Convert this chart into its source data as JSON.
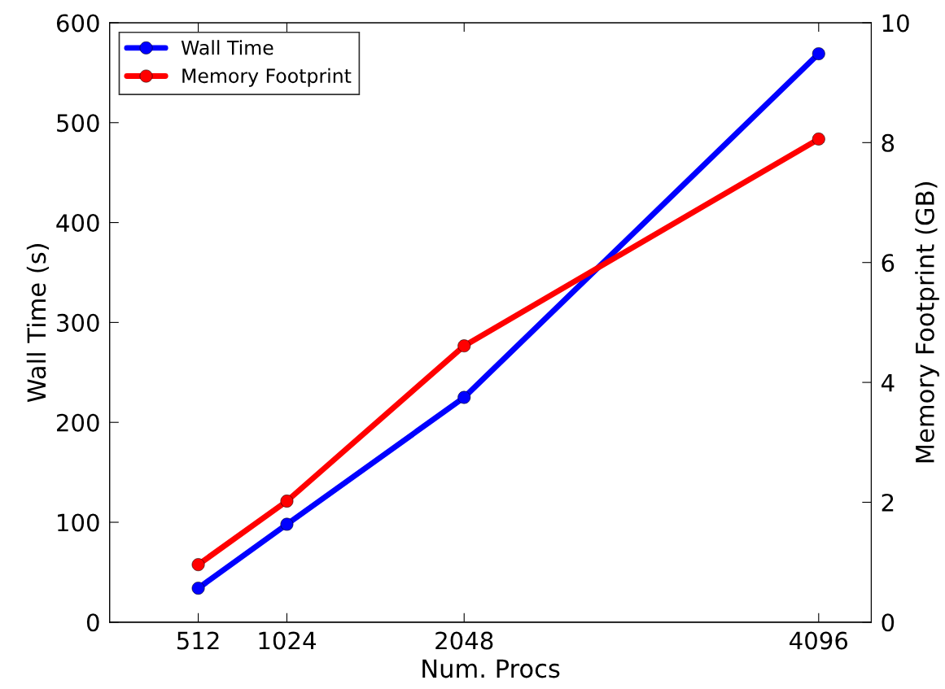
{
  "chart_data": {
    "type": "line",
    "xlabel": "Num. Procs",
    "ylabel": "Wall Time (s)",
    "y2label": "Memory Footprint (GB)",
    "x": [
      512,
      1024,
      2048,
      4096
    ],
    "series": [
      {
        "name": "Wall Time",
        "color": "#0000ff",
        "values": [
          34,
          98,
          225,
          569
        ]
      },
      {
        "name": "Memory Footprint",
        "color": "#ff0000",
        "values": [
          0.96,
          2.02,
          4.61,
          8.06
        ],
        "axis": "y2"
      }
    ],
    "xlim": [
      0,
      4400
    ],
    "xticks": [
      512,
      1024,
      2048,
      4096
    ],
    "ylim": [
      0,
      600
    ],
    "yticks": [
      0,
      100,
      200,
      300,
      400,
      500,
      600
    ],
    "y2lim": [
      0,
      10
    ],
    "y2ticks": [
      0,
      2,
      4,
      6,
      8,
      10
    ],
    "marker": "circle",
    "line_style": "solid",
    "legend": "top left",
    "grid": false
  }
}
